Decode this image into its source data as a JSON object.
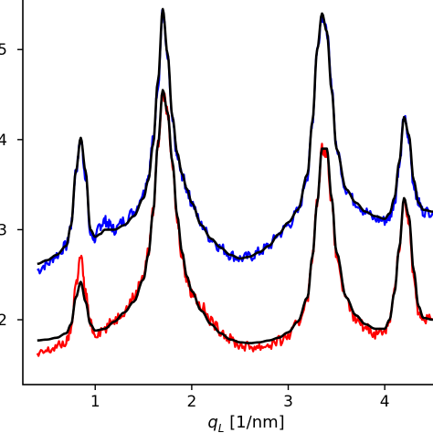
{
  "chart_data": {
    "type": "line",
    "title": "",
    "xlabel": "q_L [1/nm]",
    "xlabel_parts": {
      "var": "q",
      "sub": "L",
      "unit": " [1/nm]"
    },
    "ylabel": "",
    "xlim": [
      0.25,
      4.5
    ],
    "ylim": [
      1.28,
      5.55
    ],
    "x_ticks": [
      {
        "value": 1,
        "label": "1"
      },
      {
        "value": 2,
        "label": "2"
      },
      {
        "value": 3,
        "label": "3"
      },
      {
        "value": 4,
        "label": "4"
      }
    ],
    "y_ticks": [
      {
        "value": 2,
        "label": "2"
      },
      {
        "value": 3,
        "label": "3"
      },
      {
        "value": 4,
        "label": "4"
      },
      {
        "value": 5,
        "label": "5"
      }
    ],
    "grid": false,
    "legend": "none",
    "series": [
      {
        "color": "#0000ff",
        "kind": "data",
        "x": [
          0.4,
          0.5,
          0.6,
          0.7,
          0.75,
          0.8,
          0.85,
          0.9,
          0.95,
          1.0,
          1.05,
          1.1,
          1.15,
          1.2,
          1.3,
          1.4,
          1.5,
          1.55,
          1.6,
          1.65,
          1.7,
          1.75,
          1.8,
          1.85,
          1.9,
          1.95,
          2.0,
          2.1,
          2.2,
          2.3,
          2.4,
          2.5,
          2.6,
          2.7,
          2.8,
          2.9,
          3.0,
          3.1,
          3.2,
          3.25,
          3.3,
          3.35,
          3.4,
          3.45,
          3.5,
          3.6,
          3.7,
          3.8,
          3.9,
          4.0,
          4.05,
          4.1,
          4.15,
          4.2,
          4.25,
          4.3,
          4.35,
          4.4,
          4.5
        ],
        "y": [
          2.55,
          2.62,
          2.72,
          2.82,
          3.05,
          3.65,
          4.0,
          3.6,
          2.95,
          2.9,
          3.05,
          3.1,
          3.05,
          3.0,
          3.1,
          3.2,
          3.4,
          3.6,
          4.0,
          4.6,
          5.42,
          4.9,
          4.2,
          3.8,
          3.6,
          3.45,
          3.3,
          3.05,
          2.9,
          2.8,
          2.72,
          2.68,
          2.7,
          2.75,
          2.82,
          2.95,
          3.05,
          3.2,
          3.6,
          4.2,
          5.0,
          5.38,
          5.2,
          4.6,
          3.9,
          3.45,
          3.3,
          3.2,
          3.12,
          3.1,
          3.15,
          3.3,
          3.7,
          4.25,
          4.0,
          3.5,
          3.3,
          3.2,
          3.2
        ]
      },
      {
        "color": "#ff0000",
        "kind": "data",
        "x": [
          0.4,
          0.5,
          0.6,
          0.7,
          0.75,
          0.8,
          0.85,
          0.9,
          0.95,
          1.0,
          1.1,
          1.2,
          1.3,
          1.4,
          1.5,
          1.55,
          1.6,
          1.65,
          1.7,
          1.75,
          1.8,
          1.85,
          1.9,
          1.95,
          2.0,
          2.1,
          2.2,
          2.3,
          2.4,
          2.5,
          2.6,
          2.7,
          2.8,
          2.9,
          3.0,
          3.1,
          3.2,
          3.25,
          3.3,
          3.35,
          3.4,
          3.45,
          3.5,
          3.6,
          3.7,
          3.8,
          3.9,
          4.0,
          4.05,
          4.1,
          4.15,
          4.2,
          4.25,
          4.3,
          4.35,
          4.4,
          4.5
        ],
        "y": [
          1.6,
          1.65,
          1.7,
          1.75,
          1.9,
          2.4,
          2.7,
          2.3,
          1.95,
          1.85,
          1.9,
          2.0,
          2.1,
          2.25,
          2.5,
          2.75,
          3.2,
          3.95,
          4.52,
          4.3,
          3.7,
          3.1,
          2.7,
          2.45,
          2.3,
          2.15,
          1.98,
          1.88,
          1.78,
          1.72,
          1.7,
          1.7,
          1.72,
          1.76,
          1.82,
          1.95,
          2.25,
          2.7,
          3.3,
          3.9,
          3.85,
          3.3,
          2.7,
          2.2,
          2.0,
          1.92,
          1.85,
          1.88,
          2.0,
          2.3,
          2.8,
          3.35,
          3.1,
          2.5,
          2.1,
          2.0,
          2.0
        ]
      },
      {
        "color": "#000000",
        "kind": "fit",
        "x": [
          0.4,
          0.5,
          0.6,
          0.7,
          0.75,
          0.8,
          0.85,
          0.9,
          0.95,
          1.0,
          1.05,
          1.1,
          1.2,
          1.3,
          1.4,
          1.5,
          1.55,
          1.6,
          1.65,
          1.7,
          1.75,
          1.8,
          1.85,
          1.9,
          1.95,
          2.0,
          2.1,
          2.2,
          2.3,
          2.4,
          2.5,
          2.6,
          2.7,
          2.8,
          2.9,
          3.0,
          3.1,
          3.2,
          3.25,
          3.3,
          3.35,
          3.4,
          3.45,
          3.5,
          3.6,
          3.7,
          3.8,
          3.9,
          4.0,
          4.05,
          4.1,
          4.15,
          4.2,
          4.25,
          4.3,
          4.35,
          4.4,
          4.5
        ],
        "y": [
          2.62,
          2.66,
          2.72,
          2.82,
          3.05,
          3.65,
          4.02,
          3.65,
          3.0,
          2.92,
          2.95,
          3.0,
          3.0,
          3.05,
          3.15,
          3.35,
          3.55,
          3.95,
          4.65,
          5.45,
          4.95,
          4.25,
          3.85,
          3.62,
          3.45,
          3.3,
          3.05,
          2.9,
          2.8,
          2.72,
          2.68,
          2.7,
          2.75,
          2.82,
          2.95,
          3.08,
          3.22,
          3.62,
          4.2,
          5.0,
          5.4,
          5.2,
          4.55,
          3.9,
          3.45,
          3.3,
          3.2,
          3.15,
          3.12,
          3.18,
          3.35,
          3.75,
          4.25,
          4.05,
          3.55,
          3.3,
          3.22,
          3.2
        ]
      },
      {
        "color": "#000000",
        "kind": "fit",
        "x": [
          0.4,
          0.5,
          0.6,
          0.7,
          0.75,
          0.8,
          0.85,
          0.9,
          0.95,
          1.0,
          1.1,
          1.2,
          1.3,
          1.4,
          1.5,
          1.55,
          1.6,
          1.65,
          1.7,
          1.75,
          1.8,
          1.85,
          1.9,
          1.95,
          2.0,
          2.1,
          2.2,
          2.3,
          2.4,
          2.5,
          2.6,
          2.7,
          2.8,
          2.9,
          3.0,
          3.1,
          3.2,
          3.25,
          3.3,
          3.35,
          3.4,
          3.45,
          3.5,
          3.6,
          3.7,
          3.8,
          3.9,
          4.0,
          4.05,
          4.1,
          4.15,
          4.2,
          4.25,
          4.3,
          4.35,
          4.4,
          4.5
        ],
        "y": [
          1.77,
          1.78,
          1.8,
          1.85,
          1.95,
          2.25,
          2.42,
          2.2,
          1.95,
          1.88,
          1.9,
          1.98,
          2.08,
          2.2,
          2.45,
          2.72,
          3.2,
          3.95,
          4.55,
          4.3,
          3.75,
          3.15,
          2.75,
          2.48,
          2.32,
          2.1,
          1.95,
          1.85,
          1.78,
          1.75,
          1.74,
          1.75,
          1.77,
          1.8,
          1.86,
          1.98,
          2.25,
          2.7,
          3.3,
          3.9,
          3.9,
          3.35,
          2.75,
          2.25,
          2.05,
          1.95,
          1.9,
          1.9,
          2.0,
          2.3,
          2.8,
          3.35,
          3.15,
          2.55,
          2.15,
          2.02,
          2.0
        ]
      }
    ]
  }
}
